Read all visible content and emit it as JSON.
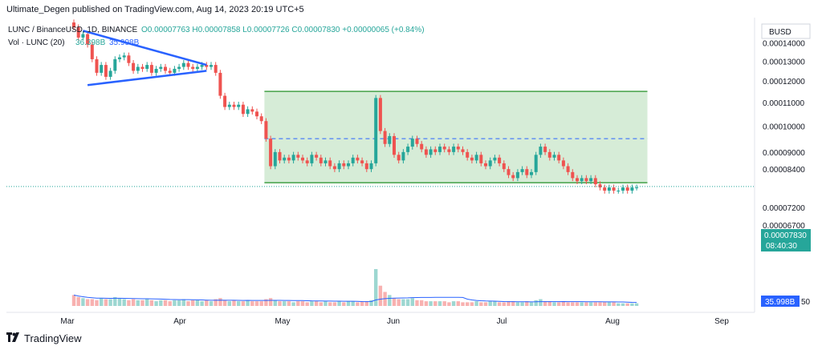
{
  "header": {
    "publisher": "Ultimate_Degen published on TradingView.com, Aug 14, 2023 20:19 UTC+5"
  },
  "legend": {
    "symbol": "LUNC / BinanceUSD, 1D, BINANCE",
    "ohlc": "O0.00007763  H0.00007858  L0.00007726  C0.00007830  +0.00000065 (+0.84%)",
    "volume_label": "Vol · LUNC (20)",
    "volume_value_a": "36.398B",
    "volume_value_b": "35.998B"
  },
  "currency_badge": "BUSD",
  "branding": {
    "logo_icon": "tradingview-logo-icon",
    "name": "TradingView"
  },
  "colors": {
    "up": "#26a69a",
    "down": "#ef5350",
    "trend": "#2962ff",
    "box_fill": "#c8e6c9",
    "box_border": "#43a047",
    "price_badge": "#26a69a",
    "vol_ma": "#2962ff",
    "vol_badge": "#2962ff"
  },
  "chart_data": {
    "type": "candlestick",
    "x_ticks": [
      "Mar",
      "Apr",
      "May",
      "Jun",
      "Jul",
      "Aug",
      "Sep"
    ],
    "y_ticks": [
      "0.00014000",
      "0.00013000",
      "0.00012000",
      "0.00011000",
      "0.00010000",
      "0.00009000",
      "0.00008400",
      "0.00007200",
      "0.00006700"
    ],
    "y_range": [
      6.3e-05,
      0.000155
    ],
    "y_scale": "log",
    "current_price": "0.00007830",
    "countdown": "08:40:30",
    "volume_last": "35.998B",
    "volume_axis_label": "50",
    "closes": [
      0.000149,
      0.000143,
      0.000145,
      0.000139,
      0.000131,
      0.000124,
      0.000128,
      0.000122,
      0.000125,
      0.000131,
      0.000132,
      0.000133,
      0.000129,
      0.000125,
      0.000127,
      0.000126,
      0.000128,
      0.000124,
      0.000126,
      0.000127,
      0.000125,
      0.000124,
      0.000126,
      0.000127,
      0.000129,
      0.000127,
      0.000126,
      0.000127,
      0.000128,
      0.000127,
      0.000128,
      0.000124,
      0.000113,
      0.000108,
      0.000109,
      0.000108,
      0.000109,
      0.000105,
      0.000107,
      0.000106,
      0.000104,
      0.000102,
      9.5e-05,
      8.5e-05,
      9e-05,
      8.7e-05,
      8.8e-05,
      8.7e-05,
      8.9e-05,
      8.8e-05,
      8.7e-05,
      8.6e-05,
      8.9e-05,
      8.8e-05,
      8.6e-05,
      8.7e-05,
      8.5e-05,
      8.4e-05,
      8.6e-05,
      8.5e-05,
      8.6e-05,
      8.8e-05,
      8.7e-05,
      8.6e-05,
      8.4e-05,
      8.6e-05,
      0.000112,
      9.8e-05,
      9.3e-05,
      9.6e-05,
      8.9e-05,
      8.7e-05,
      9e-05,
      9.2e-05,
      9.5e-05,
      9.3e-05,
      9.1e-05,
      8.9e-05,
      9.1e-05,
      9e-05,
      9.2e-05,
      9.1e-05,
      9e-05,
      9.2e-05,
      9.1e-05,
      9e-05,
      8.8e-05,
      8.7e-05,
      8.9e-05,
      8.6e-05,
      8.5e-05,
      8.7e-05,
      8.8e-05,
      8.6e-05,
      8.4e-05,
      8.2e-05,
      8.1e-05,
      8.3e-05,
      8.4e-05,
      8.2e-05,
      8.3e-05,
      8.9e-05,
      9.2e-05,
      9e-05,
      8.8e-05,
      8.9e-05,
      8.7e-05,
      8.5e-05,
      8.3e-05,
      8.1e-05,
      8e-05,
      8.1e-05,
      8e-05,
      8.1e-05,
      7.9e-05,
      7.8e-05,
      7.7e-05,
      7.8e-05,
      7.7e-05,
      7.7e-05,
      7.8e-05,
      7.7e-05,
      7.8e-05,
      7.8e-05
    ],
    "volumes": [
      9,
      7,
      6,
      5,
      5,
      4,
      6,
      5,
      5,
      7,
      6,
      5,
      4,
      5,
      4,
      4,
      5,
      4,
      3,
      4,
      4,
      3,
      4,
      4,
      5,
      3,
      4,
      4,
      3,
      4,
      3,
      5,
      6,
      4,
      3,
      4,
      3,
      3,
      4,
      3,
      3,
      3,
      5,
      6,
      4,
      3,
      3,
      3,
      2,
      3,
      3,
      2,
      3,
      3,
      2,
      3,
      2,
      2,
      3,
      2,
      3,
      3,
      2,
      3,
      3,
      4,
      34,
      18,
      12,
      9,
      6,
      5,
      5,
      5,
      6,
      4,
      4,
      3,
      3,
      3,
      3,
      3,
      2,
      3,
      3,
      2,
      2,
      2,
      3,
      2,
      2,
      3,
      3,
      2,
      2,
      3,
      3,
      2,
      2,
      3,
      2,
      4,
      5,
      3,
      3,
      2,
      2,
      3,
      2,
      2,
      2,
      2,
      2,
      2,
      2,
      2,
      2,
      2,
      2,
      1,
      1,
      1,
      1,
      1
    ],
    "triangle": {
      "upper": [
        [
          2,
          0.000147
        ],
        [
          29,
          0.000128
        ]
      ],
      "lower": [
        [
          3,
          0.000118
        ],
        [
          29,
          0.000125
        ]
      ]
    },
    "range_box": {
      "start": 42,
      "end": 125,
      "top": 0.000115,
      "bottom": 7.95e-05,
      "mid": 9.5e-05
    }
  }
}
